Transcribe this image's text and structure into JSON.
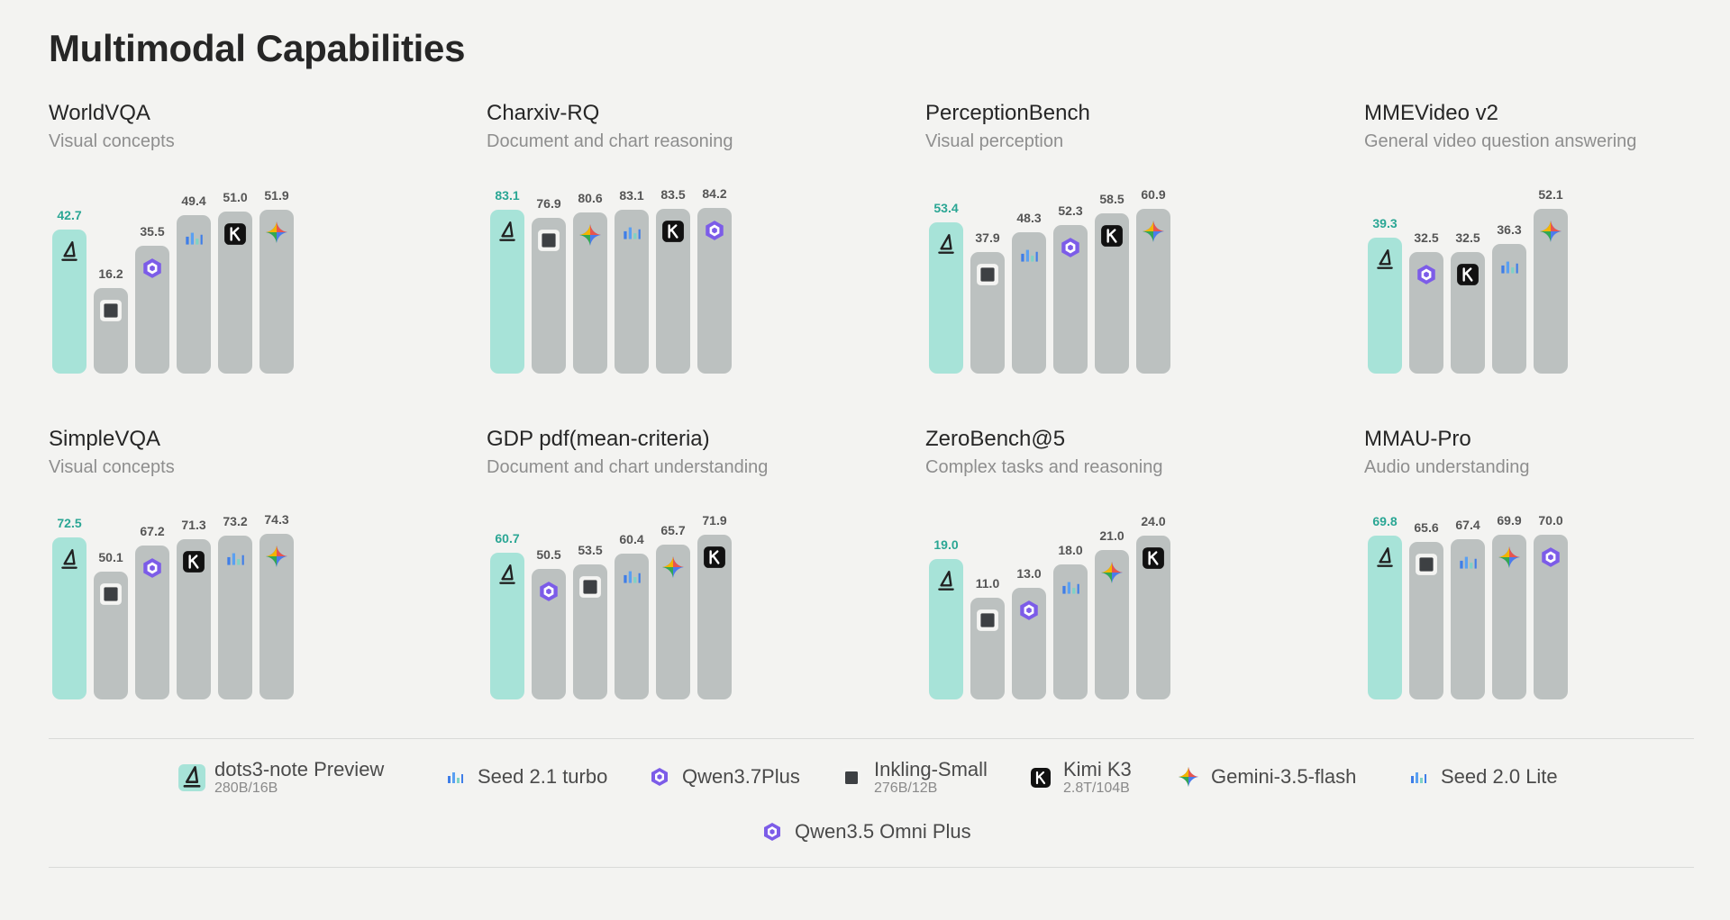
{
  "title": "Multimodal Capabilities",
  "colors": {
    "highlight_bar": "#a7e3d8",
    "highlight_text": "#2aa694",
    "other_bar": "#bcc1c0",
    "value_text": "#555555"
  },
  "models": {
    "dots": {
      "name": "dots3-note Preview",
      "sub": "280B/16B",
      "icon": "dots-sail-icon"
    },
    "seed21": {
      "name": "Seed 2.1 turbo",
      "sub": "",
      "icon": "seed-bars-icon"
    },
    "qwen37": {
      "name": "Qwen3.7Plus",
      "sub": "",
      "icon": "qwen-star-icon"
    },
    "inkling": {
      "name": "Inkling-Small",
      "sub": "276B/12B",
      "icon": "square-icon"
    },
    "kimi": {
      "name": "Kimi K3",
      "sub": "2.8T/104B",
      "icon": "kimi-k-icon"
    },
    "gemini": {
      "name": "Gemini-3.5-flash",
      "sub": "",
      "icon": "gemini-sparkle-icon"
    },
    "seed20": {
      "name": "Seed 2.0 Lite",
      "sub": "",
      "icon": "seed-bars-icon"
    },
    "qwen35": {
      "name": "Qwen3.5 Omni Plus",
      "sub": "",
      "icon": "qwen-star-icon"
    }
  },
  "legend_order": [
    "dots",
    "seed21",
    "qwen37",
    "inkling",
    "kimi",
    "gemini",
    "seed20",
    "qwen35"
  ],
  "chart_data": [
    {
      "type": "bar",
      "title": "WorldVQA",
      "subtitle": "Visual concepts",
      "ylim": [
        0,
        55
      ],
      "bars": [
        {
          "value": 42.7,
          "label": "42.7",
          "icon": "dots-sail-icon",
          "highlight": true
        },
        {
          "value": 16.2,
          "label": "16.2",
          "icon": "square-icon",
          "highlight": false
        },
        {
          "value": 35.5,
          "label": "35.5",
          "icon": "qwen-star-icon",
          "highlight": false
        },
        {
          "value": 49.4,
          "label": "49.4",
          "icon": "seed-bars-icon",
          "highlight": false
        },
        {
          "value": 51.0,
          "label": "51.0",
          "icon": "kimi-k-icon",
          "highlight": false
        },
        {
          "value": 51.9,
          "label": "51.9",
          "icon": "gemini-sparkle-icon",
          "highlight": false
        }
      ]
    },
    {
      "type": "bar",
      "title": "Charxiv-RQ",
      "subtitle": "Document and chart reasoning",
      "ylim": [
        0,
        88
      ],
      "bars": [
        {
          "value": 83.1,
          "label": "83.1",
          "icon": "dots-sail-icon",
          "highlight": true
        },
        {
          "value": 76.9,
          "label": "76.9",
          "icon": "square-icon",
          "highlight": false
        },
        {
          "value": 80.6,
          "label": "80.6",
          "icon": "gemini-sparkle-icon",
          "highlight": false
        },
        {
          "value": 83.1,
          "label": "83.1",
          "icon": "seed-bars-icon",
          "highlight": false
        },
        {
          "value": 83.5,
          "label": "83.5",
          "icon": "kimi-k-icon",
          "highlight": false
        },
        {
          "value": 84.2,
          "label": "84.2",
          "icon": "qwen-star-icon",
          "highlight": false
        }
      ]
    },
    {
      "type": "bar",
      "title": "PerceptionBench",
      "subtitle": "Visual perception",
      "ylim": [
        0,
        64
      ],
      "bars": [
        {
          "value": 53.4,
          "label": "53.4",
          "icon": "dots-sail-icon",
          "highlight": true
        },
        {
          "value": 37.9,
          "label": "37.9",
          "icon": "square-icon",
          "highlight": false
        },
        {
          "value": 48.3,
          "label": "48.3",
          "icon": "seed-bars-icon",
          "highlight": false
        },
        {
          "value": 52.3,
          "label": "52.3",
          "icon": "qwen-star-icon",
          "highlight": false
        },
        {
          "value": 58.5,
          "label": "58.5",
          "icon": "kimi-k-icon",
          "highlight": false
        },
        {
          "value": 60.9,
          "label": "60.9",
          "icon": "gemini-sparkle-icon",
          "highlight": false
        }
      ]
    },
    {
      "type": "bar",
      "title": "MMEVideo v2",
      "subtitle": "General video question answering",
      "ylim": [
        0,
        55
      ],
      "bars": [
        {
          "value": 39.3,
          "label": "39.3",
          "icon": "dots-sail-icon",
          "highlight": true
        },
        {
          "value": 32.5,
          "label": "32.5",
          "icon": "qwen-star-icon",
          "highlight": false
        },
        {
          "value": 32.5,
          "label": "32.5",
          "icon": "kimi-k-icon",
          "highlight": false
        },
        {
          "value": 36.3,
          "label": "36.3",
          "icon": "seed-bars-icon",
          "highlight": false
        },
        {
          "value": 52.1,
          "label": "52.1",
          "icon": "gemini-sparkle-icon",
          "highlight": false
        }
      ]
    },
    {
      "type": "bar",
      "title": "SimpleVQA",
      "subtitle": "Visual concepts",
      "ylim": [
        0,
        78
      ],
      "bars": [
        {
          "value": 72.5,
          "label": "72.5",
          "icon": "dots-sail-icon",
          "highlight": true
        },
        {
          "value": 50.1,
          "label": "50.1",
          "icon": "square-icon",
          "highlight": false
        },
        {
          "value": 67.2,
          "label": "67.2",
          "icon": "qwen-star-icon",
          "highlight": false
        },
        {
          "value": 71.3,
          "label": "71.3",
          "icon": "kimi-k-icon",
          "highlight": false
        },
        {
          "value": 73.2,
          "label": "73.2",
          "icon": "seed-bars-icon",
          "highlight": false
        },
        {
          "value": 74.3,
          "label": "74.3",
          "icon": "gemini-sparkle-icon",
          "highlight": false
        }
      ]
    },
    {
      "type": "bar",
      "title": "GDP pdf(mean-criteria)",
      "subtitle": "Document and chart understanding",
      "ylim": [
        0,
        76
      ],
      "bars": [
        {
          "value": 60.7,
          "label": "60.7",
          "icon": "dots-sail-icon",
          "highlight": true
        },
        {
          "value": 50.5,
          "label": "50.5",
          "icon": "qwen-star-icon",
          "highlight": false
        },
        {
          "value": 53.5,
          "label": "53.5",
          "icon": "square-icon",
          "highlight": false
        },
        {
          "value": 60.4,
          "label": "60.4",
          "icon": "seed-bars-icon",
          "highlight": false
        },
        {
          "value": 65.7,
          "label": "65.7",
          "icon": "gemini-sparkle-icon",
          "highlight": false
        },
        {
          "value": 71.9,
          "label": "71.9",
          "icon": "kimi-k-icon",
          "highlight": false
        }
      ]
    },
    {
      "type": "bar",
      "title": "ZeroBench@5",
      "subtitle": "Complex tasks and reasoning",
      "ylim": [
        0,
        25.5
      ],
      "bars": [
        {
          "value": 19.0,
          "label": "19.0",
          "icon": "dots-sail-icon",
          "highlight": true
        },
        {
          "value": 11.0,
          "label": "11.0",
          "icon": "square-icon",
          "highlight": false
        },
        {
          "value": 13.0,
          "label": "13.0",
          "icon": "qwen-star-icon",
          "highlight": false
        },
        {
          "value": 18.0,
          "label": "18.0",
          "icon": "seed-bars-icon",
          "highlight": false
        },
        {
          "value": 21.0,
          "label": "21.0",
          "icon": "gemini-sparkle-icon",
          "highlight": false
        },
        {
          "value": 24.0,
          "label": "24.0",
          "icon": "kimi-k-icon",
          "highlight": false
        }
      ]
    },
    {
      "type": "bar",
      "title": "MMAU-Pro",
      "subtitle": "Audio understanding",
      "ylim": [
        0,
        74
      ],
      "bars": [
        {
          "value": 69.8,
          "label": "69.8",
          "icon": "dots-sail-icon",
          "highlight": true
        },
        {
          "value": 65.6,
          "label": "65.6",
          "icon": "square-icon",
          "highlight": false
        },
        {
          "value": 67.4,
          "label": "67.4",
          "icon": "seed-bars-icon",
          "highlight": false
        },
        {
          "value": 69.9,
          "label": "69.9",
          "icon": "gemini-sparkle-icon",
          "highlight": false
        },
        {
          "value": 70.0,
          "label": "70.0",
          "icon": "qwen-star-icon",
          "highlight": false
        }
      ]
    }
  ]
}
